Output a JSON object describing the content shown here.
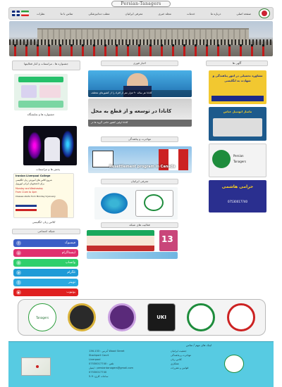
{
  "site": {
    "logo_text": "Persian-Tanagers"
  },
  "nav": {
    "items": [
      "صفحه اصلی",
      "درباره ما",
      "خدمات",
      "مجله خبری",
      "معرفی ایرانیان",
      "مطب دندانپزشکی",
      "تماس با ما",
      "نظرات"
    ]
  },
  "sections": {
    "ads": "آگهی ها",
    "news": "اخبار فوری",
    "festival": "جشنواره ها ، مراسمات و کنار فعالیتها",
    "immigration": "مهاجرت و پناهندگی",
    "iranians": "معرفی ایرانیان",
    "gallery": "فعالیت های شبکه",
    "social": "شبکه اجتماعی",
    "footer_links": "لینک های مهم / تماس"
  },
  "news": {
    "headline1": "کانادا هر ساله ۹۰ هزار نفر از افراد را از کشورهای مختلف",
    "headline2": "کانادا در توسعه و از قطع به محل",
    "headline3": "کانادا اولین کشور حامی گروه ها در"
  },
  "immigration": {
    "banner": "Resettlement program in Canada"
  },
  "festival": {
    "caption1": "جشنواره ها و نمایشگاه",
    "caption2": "پخش ها و مراسمات",
    "caption3": "کلاس زبان انگلیسی"
  },
  "college": {
    "name": "Iranian Liverpool College",
    "fa1": "شروع کلاس های آموزش زبان انگلیسی",
    "fa2": "برای دانشجویان ایرانی لیورپول",
    "days": "Monday and Wednesday",
    "time": "From 11am to 4pm",
    "start": "Classes starts from Monday 9 January"
  },
  "ads": {
    "ad1": "مشاوره تحصیلی در امور پناهندگی و شهادت به انگلیسی",
    "ad2": "ماساژ اتومبیل عباس",
    "ad3": "07530017740",
    "ad4": "حرامی هاشمی"
  },
  "social": [
    {
      "label": "فیسبوک",
      "color": "#3b5ec6",
      "icon": "f"
    },
    {
      "label": "اینستاگرام",
      "color": "#e0306f",
      "icon": "◎"
    },
    {
      "label": "واتساپ",
      "color": "#2fcf6b",
      "icon": "✆"
    },
    {
      "label": "تلگرام",
      "color": "#1e9bd7",
      "icon": "➤"
    },
    {
      "label": "توییتر",
      "color": "#2aa9e0",
      "icon": "t"
    },
    {
      "label": "یوتیوب",
      "color": "#e02020",
      "icon": "▶"
    }
  ],
  "brands": [
    "Tanagers",
    "",
    "",
    "UKI",
    "",
    ""
  ],
  "footer": {
    "col_right": [
      "جمعیت ایرانیان",
      "مهاجرت و پناهندگی",
      "کلاس زبان",
      "همکاری",
      "قوانین و مقررات"
    ],
    "col_mid": [
      "آدرس : 133-136 Wood Street",
      "Stockport Court",
      "Liverpool",
      "تلفن : 07530017740",
      "ایمیل : persiantanagers@gmail.com",
      "07530017740",
      "ساعات کاری: 9-5"
    ],
    "map_label": "ایران Map"
  }
}
